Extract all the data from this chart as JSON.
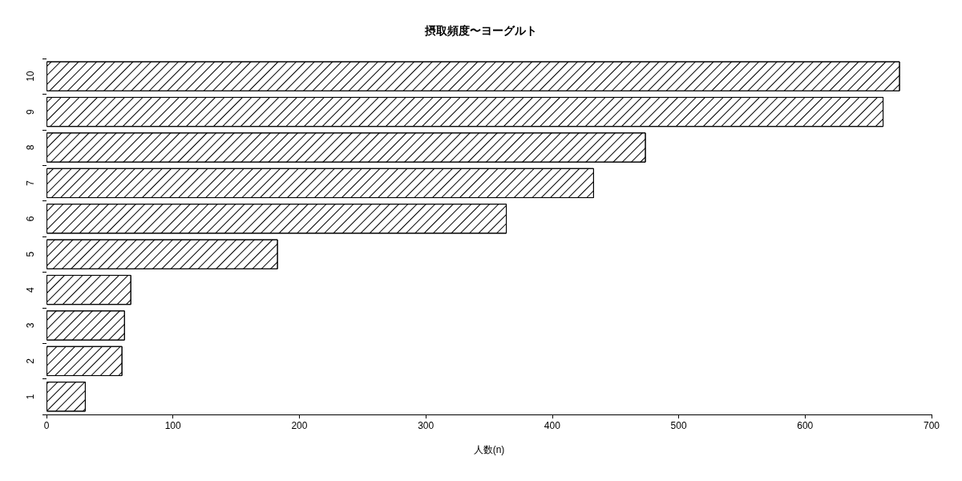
{
  "chart_data": {
    "type": "bar",
    "orientation": "horizontal",
    "title": "摂取頻度〜ヨーグルト",
    "xlabel": "人数(n)",
    "categories": [
      "10",
      "9",
      "8",
      "7",
      "6",
      "5",
      "4",
      "3",
      "2",
      "1"
    ],
    "values": [
      675,
      662,
      474,
      433,
      364,
      183,
      67,
      62,
      60,
      31
    ],
    "color": "#ffffff",
    "xlim": [
      0,
      700
    ],
    "xticks": [
      0,
      100,
      200,
      300,
      400,
      500,
      600,
      700
    ],
    "grid": false
  }
}
